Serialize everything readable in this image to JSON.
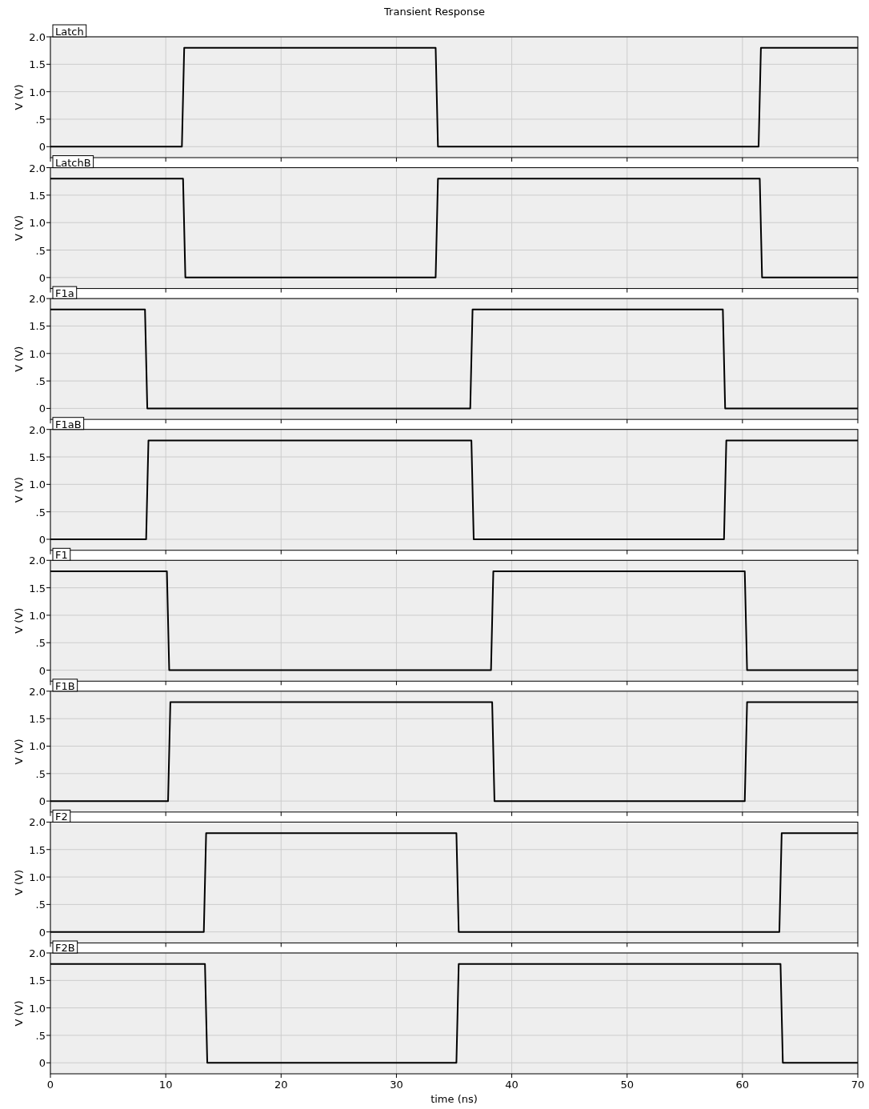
{
  "chart_data": [
    {
      "type": "line",
      "title": "Transient Response",
      "ylabel": "V (V)",
      "xlim": [
        0,
        70
      ],
      "ylim": [
        -0.2,
        2.0
      ],
      "xticks": [
        0,
        10,
        20,
        30,
        40,
        50,
        60,
        70
      ],
      "yticks": [
        {
          "value": 0,
          "label": "0"
        },
        {
          "value": 0.5,
          "label": ".5"
        },
        {
          "value": 1,
          "label": "1.0"
        },
        {
          "value": 1.5,
          "label": "1.5"
        },
        {
          "value": 2,
          "label": "2.0"
        }
      ],
      "grid": true,
      "legend": "top left",
      "tick_labels": "y",
      "series": [
        {
          "name": "Latch",
          "color": "#000000",
          "x": [
            0,
            11.4,
            11.6,
            33.4,
            33.6,
            61.4,
            61.6,
            70
          ],
          "values": [
            0,
            0,
            1.8,
            1.8,
            0,
            0,
            1.8,
            1.8
          ]
        }
      ]
    },
    {
      "type": "line",
      "ylabel": "V (V)",
      "xlim": [
        0,
        70
      ],
      "ylim": [
        -0.2,
        2.0
      ],
      "xticks": [
        0,
        10,
        20,
        30,
        40,
        50,
        60,
        70
      ],
      "yticks": [
        {
          "value": 0,
          "label": "0"
        },
        {
          "value": 0.5,
          "label": ".5"
        },
        {
          "value": 1,
          "label": "1.0"
        },
        {
          "value": 1.5,
          "label": "1.5"
        },
        {
          "value": 2,
          "label": "2.0"
        }
      ],
      "grid": true,
      "legend": "top left",
      "tick_labels": "y",
      "series": [
        {
          "name": "LatchB",
          "color": "#000000",
          "x": [
            0,
            11.5,
            11.7,
            33.4,
            33.6,
            61.5,
            61.7,
            70
          ],
          "values": [
            1.8,
            1.8,
            0,
            0,
            1.8,
            1.8,
            0,
            0
          ]
        }
      ]
    },
    {
      "type": "line",
      "ylabel": "V (V)",
      "xlim": [
        0,
        70
      ],
      "ylim": [
        -0.2,
        2.0
      ],
      "xticks": [
        0,
        10,
        20,
        30,
        40,
        50,
        60,
        70
      ],
      "yticks": [
        {
          "value": 0,
          "label": "0"
        },
        {
          "value": 0.5,
          "label": ".5"
        },
        {
          "value": 1,
          "label": "1.0"
        },
        {
          "value": 1.5,
          "label": "1.5"
        },
        {
          "value": 2,
          "label": "2.0"
        }
      ],
      "grid": true,
      "legend": "top left",
      "tick_labels": "y",
      "series": [
        {
          "name": "F1a",
          "color": "#000000",
          "x": [
            0,
            8.2,
            8.4,
            36.4,
            36.6,
            58.3,
            58.5,
            70
          ],
          "values": [
            1.8,
            1.8,
            0,
            0,
            1.8,
            1.8,
            0,
            0
          ]
        }
      ]
    },
    {
      "type": "line",
      "ylabel": "V (V)",
      "xlim": [
        0,
        70
      ],
      "ylim": [
        -0.2,
        2.0
      ],
      "xticks": [
        0,
        10,
        20,
        30,
        40,
        50,
        60,
        70
      ],
      "yticks": [
        {
          "value": 0,
          "label": "0"
        },
        {
          "value": 0.5,
          "label": ".5"
        },
        {
          "value": 1,
          "label": "1.0"
        },
        {
          "value": 1.5,
          "label": "1.5"
        },
        {
          "value": 2,
          "label": "2.0"
        }
      ],
      "grid": true,
      "legend": "top left",
      "tick_labels": "y",
      "series": [
        {
          "name": "F1aB",
          "color": "#000000",
          "x": [
            0,
            8.3,
            8.5,
            36.5,
            36.7,
            58.4,
            58.6,
            70
          ],
          "values": [
            0,
            0,
            1.8,
            1.8,
            0,
            0,
            1.8,
            1.8
          ]
        }
      ]
    },
    {
      "type": "line",
      "ylabel": "V (V)",
      "xlim": [
        0,
        70
      ],
      "ylim": [
        -0.2,
        2.0
      ],
      "xticks": [
        0,
        10,
        20,
        30,
        40,
        50,
        60,
        70
      ],
      "yticks": [
        {
          "value": 0,
          "label": "0"
        },
        {
          "value": 0.5,
          "label": ".5"
        },
        {
          "value": 1,
          "label": "1.0"
        },
        {
          "value": 1.5,
          "label": "1.5"
        },
        {
          "value": 2,
          "label": "2.0"
        }
      ],
      "grid": true,
      "legend": "top left",
      "tick_labels": "y",
      "series": [
        {
          "name": "F1",
          "color": "#000000",
          "x": [
            0,
            10.1,
            10.3,
            38.2,
            38.4,
            60.2,
            60.4,
            70
          ],
          "values": [
            1.8,
            1.8,
            0,
            0,
            1.8,
            1.8,
            0,
            0
          ]
        }
      ]
    },
    {
      "type": "line",
      "ylabel": "V (V)",
      "xlim": [
        0,
        70
      ],
      "ylim": [
        -0.2,
        2.0
      ],
      "xticks": [
        0,
        10,
        20,
        30,
        40,
        50,
        60,
        70
      ],
      "yticks": [
        {
          "value": 0,
          "label": "0"
        },
        {
          "value": 0.5,
          "label": ".5"
        },
        {
          "value": 1,
          "label": "1.0"
        },
        {
          "value": 1.5,
          "label": "1.5"
        },
        {
          "value": 2,
          "label": "2.0"
        }
      ],
      "grid": true,
      "legend": "top left",
      "tick_labels": "y",
      "series": [
        {
          "name": "F1B",
          "color": "#000000",
          "x": [
            0,
            10.2,
            10.4,
            38.3,
            38.5,
            60.2,
            60.4,
            70
          ],
          "values": [
            0,
            0,
            1.8,
            1.8,
            0,
            0,
            1.8,
            1.8
          ]
        }
      ]
    },
    {
      "type": "line",
      "ylabel": "V (V)",
      "xlim": [
        0,
        70
      ],
      "ylim": [
        -0.2,
        2.0
      ],
      "xticks": [
        0,
        10,
        20,
        30,
        40,
        50,
        60,
        70
      ],
      "yticks": [
        {
          "value": 0,
          "label": "0"
        },
        {
          "value": 0.5,
          "label": ".5"
        },
        {
          "value": 1,
          "label": "1.0"
        },
        {
          "value": 1.5,
          "label": "1.5"
        },
        {
          "value": 2,
          "label": "2.0"
        }
      ],
      "grid": true,
      "legend": "top left",
      "tick_labels": "y",
      "series": [
        {
          "name": "F2",
          "color": "#000000",
          "x": [
            0,
            13.3,
            13.5,
            35.2,
            35.4,
            63.2,
            63.4,
            70
          ],
          "values": [
            0,
            0,
            1.8,
            1.8,
            0,
            0,
            1.8,
            1.8
          ]
        }
      ]
    },
    {
      "type": "line",
      "xlabel": "time (ns)",
      "ylabel": "V (V)",
      "xlim": [
        0,
        70
      ],
      "ylim": [
        -0.2,
        2.0
      ],
      "xticks": [
        0,
        10,
        20,
        30,
        40,
        50,
        60,
        70
      ],
      "yticks": [
        {
          "value": 0,
          "label": "0"
        },
        {
          "value": 0.5,
          "label": ".5"
        },
        {
          "value": 1,
          "label": "1.0"
        },
        {
          "value": 1.5,
          "label": "1.5"
        },
        {
          "value": 2,
          "label": "2.0"
        }
      ],
      "grid": true,
      "legend": "top left",
      "series": [
        {
          "name": "F2B",
          "color": "#000000",
          "x": [
            0,
            13.4,
            13.6,
            35.2,
            35.4,
            63.3,
            63.5,
            70
          ],
          "values": [
            1.8,
            1.8,
            0,
            0,
            1.8,
            1.8,
            0,
            0
          ]
        }
      ]
    }
  ]
}
